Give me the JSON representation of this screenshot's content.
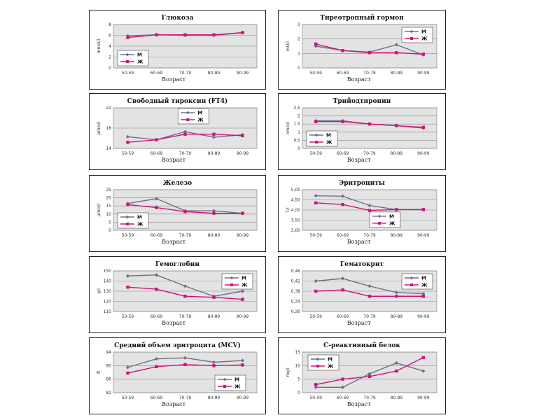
{
  "colors": {
    "male": "#6e6e8a",
    "female": "#d0127d",
    "plot_bg": "#e3e3e3",
    "grid": "#8a8a8a"
  },
  "legend_labels": {
    "male": "М",
    "female": "Ж"
  },
  "xlabel": "Возраст",
  "categories": [
    "50-59",
    "60-69",
    "70-79",
    "80-89",
    "90-99"
  ],
  "chart_data": [
    {
      "type": "line",
      "title": "Глюкоза",
      "ylabel": "mmol/l",
      "ylim": [
        0,
        8
      ],
      "yticks": [
        0,
        2,
        4,
        6,
        8
      ],
      "yfmt": 0,
      "legend": "bottom-left",
      "categories": [
        "50-59",
        "60-69",
        "70-79",
        "80-89",
        "90-99"
      ],
      "series": [
        {
          "name": "М",
          "values": [
            5.9,
            6.1,
            6.0,
            6.0,
            6.5
          ]
        },
        {
          "name": "Ж",
          "values": [
            5.6,
            6.1,
            6.1,
            6.1,
            6.5
          ]
        }
      ]
    },
    {
      "type": "line",
      "title": "Тиреотропный гормон",
      "ylabel": "mU/l",
      "ylim": [
        0,
        3
      ],
      "yticks": [
        0,
        1,
        2,
        3
      ],
      "yfmt": 0,
      "legend": "top-right",
      "categories": [
        "50-59",
        "60-69",
        "70-79",
        "80-89",
        "90-99"
      ],
      "series": [
        {
          "name": "М",
          "values": [
            1.5,
            1.2,
            1.1,
            1.6,
            0.9
          ]
        },
        {
          "name": "Ж",
          "values": [
            1.65,
            1.2,
            1.05,
            1.05,
            0.95
          ]
        }
      ]
    },
    {
      "type": "line",
      "title": "Свободный тироксин (FT4)",
      "ylabel": "pmol/l",
      "ylim": [
        14,
        22
      ],
      "yticks": [
        14,
        18,
        22
      ],
      "yfmt": 0,
      "legend": "top-center",
      "categories": [
        "50-59",
        "60-69",
        "70-79",
        "80-89",
        "90-99"
      ],
      "series": [
        {
          "name": "М",
          "values": [
            16.3,
            15.7,
            17.3,
            16.2,
            16.7
          ]
        },
        {
          "name": "Ж",
          "values": [
            15.2,
            15.7,
            16.8,
            16.8,
            16.5
          ]
        }
      ]
    },
    {
      "type": "line",
      "title": "Трийодтиронин",
      "ylabel": "nmol/l",
      "ylim": [
        0,
        2.5
      ],
      "yticks": [
        0,
        0.5,
        1,
        1.5,
        2,
        2.5
      ],
      "yfmt": -1,
      "legend": "bottom-left",
      "categories": [
        "50-59",
        "60-69",
        "70-79",
        "80-89",
        "90-99"
      ],
      "series": [
        {
          "name": "М",
          "values": [
            1.7,
            1.7,
            1.5,
            1.4,
            1.25
          ]
        },
        {
          "name": "Ж",
          "values": [
            1.65,
            1.65,
            1.5,
            1.4,
            1.3
          ]
        }
      ]
    },
    {
      "type": "line",
      "title": "Железо",
      "ylabel": "µmol/l",
      "ylim": [
        0,
        25
      ],
      "yticks": [
        0,
        5,
        10,
        15,
        20,
        25
      ],
      "yfmt": 0,
      "legend": "bottom-left",
      "categories": [
        "50-59",
        "60-69",
        "70-79",
        "80-89",
        "90-99"
      ],
      "series": [
        {
          "name": "М",
          "values": [
            16.5,
            19.5,
            12,
            12,
            10.5
          ]
        },
        {
          "name": "Ж",
          "values": [
            15.8,
            14,
            11.5,
            10.5,
            10.5
          ]
        }
      ]
    },
    {
      "type": "line",
      "title": "Эритроциты",
      "ylabel": "T/l",
      "ylim": [
        3,
        5
      ],
      "yticks": [
        3,
        3.5,
        4,
        4.5,
        5
      ],
      "yfmt": 2,
      "legend": "center",
      "categories": [
        "50-59",
        "60-69",
        "70-79",
        "80-89",
        "90-99"
      ],
      "series": [
        {
          "name": "М",
          "values": [
            4.7,
            4.68,
            4.22,
            4.02,
            4.02
          ]
        },
        {
          "name": "Ж",
          "values": [
            4.35,
            4.27,
            3.98,
            4.02,
            4.02
          ]
        }
      ]
    },
    {
      "type": "line",
      "title": "Гемоглобин",
      "ylabel": "g/l",
      "ylim": [
        110,
        150
      ],
      "yticks": [
        110,
        120,
        130,
        140,
        150
      ],
      "yfmt": 0,
      "legend": "top-right",
      "categories": [
        "50-59",
        "60-69",
        "70-79",
        "80-89",
        "90-99"
      ],
      "series": [
        {
          "name": "М",
          "values": [
            145,
            146,
            135,
            125,
            130
          ]
        },
        {
          "name": "Ж",
          "values": [
            134,
            132,
            125,
            124,
            122
          ]
        }
      ]
    },
    {
      "type": "line",
      "title": "Гематокрит",
      "ylabel": "",
      "ylim": [
        0.3,
        0.46
      ],
      "yticks": [
        0.3,
        0.34,
        0.38,
        0.42,
        0.46
      ],
      "yfmt": -2,
      "legend": "top-right",
      "categories": [
        "50-59",
        "60-69",
        "70-79",
        "80-89",
        "90-99"
      ],
      "series": [
        {
          "name": "М",
          "values": [
            0.42,
            0.43,
            0.4,
            0.375,
            0.37
          ]
        },
        {
          "name": "Ж",
          "values": [
            0.38,
            0.385,
            0.36,
            0.36,
            0.36
          ]
        }
      ]
    },
    {
      "type": "line",
      "title": "Средний объем эритроцита (MCV)",
      "ylabel": "fl",
      "ylim": [
        82,
        94
      ],
      "yticks": [
        82,
        86,
        90,
        94
      ],
      "yfmt": 0,
      "legend": "bottom-right",
      "categories": [
        "50-59",
        "60-69",
        "70-79",
        "80-89",
        "90-99"
      ],
      "series": [
        {
          "name": "М",
          "values": [
            89.5,
            92,
            92.3,
            91,
            91.5
          ]
        },
        {
          "name": "Ж",
          "values": [
            87.8,
            89.7,
            90.3,
            90,
            90.2
          ]
        }
      ]
    },
    {
      "type": "line",
      "title": "С-реактивный белок",
      "ylabel": "mg/l",
      "ylim": [
        0,
        15
      ],
      "yticks": [
        0,
        5,
        10,
        15
      ],
      "yfmt": 0,
      "legend": "top-left",
      "categories": [
        "50-59",
        "60-69",
        "70-79",
        "80-89",
        "90-99"
      ],
      "series": [
        {
          "name": "М",
          "values": [
            2,
            2,
            7,
            11,
            8
          ]
        },
        {
          "name": "Ж",
          "values": [
            3,
            5,
            6,
            8,
            13
          ]
        }
      ]
    }
  ]
}
